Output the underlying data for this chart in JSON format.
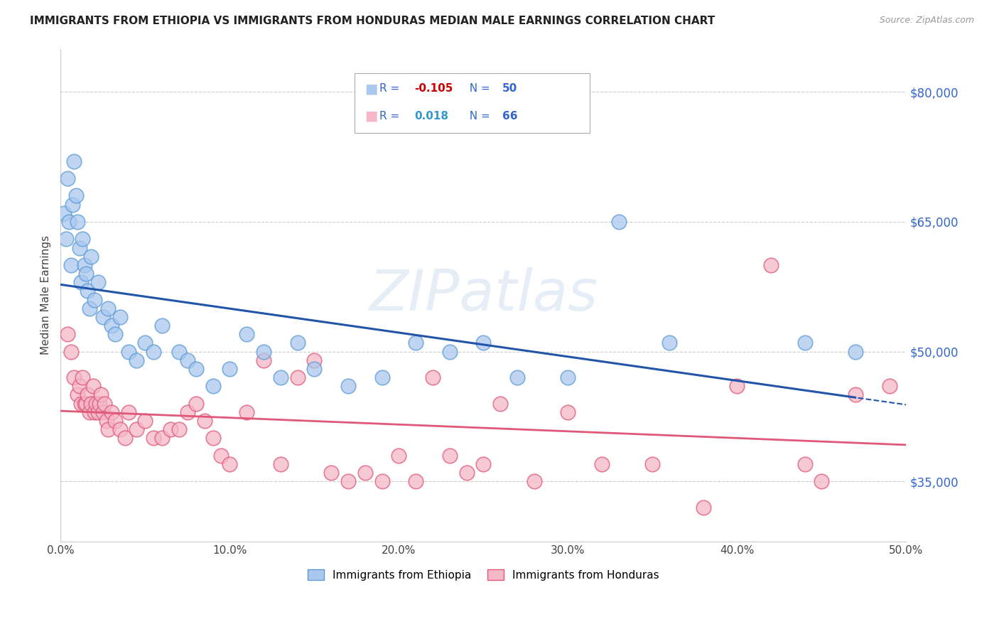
{
  "title": "IMMIGRANTS FROM ETHIOPIA VS IMMIGRANTS FROM HONDURAS MEDIAN MALE EARNINGS CORRELATION CHART",
  "source": "Source: ZipAtlas.com",
  "ylabel": "Median Male Earnings",
  "yticks": [
    35000,
    50000,
    65000,
    80000
  ],
  "ytick_labels": [
    "$35,000",
    "$50,000",
    "$65,000",
    "$80,000"
  ],
  "xtick_vals": [
    0,
    10,
    20,
    30,
    40,
    50
  ],
  "xtick_labels": [
    "0.0%",
    "10.0%",
    "20.0%",
    "30.0%",
    "40.0%",
    "50.0%"
  ],
  "xlim": [
    0.0,
    50.0
  ],
  "ylim": [
    28000,
    85000
  ],
  "ethiopia_color": "#aac8ee",
  "ethiopia_edge": "#5b9bd5",
  "honduras_color": "#f5b8c8",
  "honduras_edge": "#e05878",
  "ethiopia_R": -0.105,
  "ethiopia_N": 50,
  "honduras_R": 0.018,
  "honduras_N": 66,
  "blue_line_color": "#2255aa",
  "pink_line_color": "#e05878",
  "watermark": "ZIPatlas",
  "ethiopia_x": [
    0.2,
    0.3,
    0.4,
    0.5,
    0.6,
    0.7,
    0.8,
    0.9,
    1.0,
    1.1,
    1.2,
    1.3,
    1.4,
    1.5,
    1.6,
    1.7,
    1.8,
    2.0,
    2.2,
    2.5,
    2.8,
    3.0,
    3.2,
    3.5,
    4.0,
    4.5,
    5.0,
    5.5,
    6.0,
    7.0,
    7.5,
    8.0,
    9.0,
    10.0,
    11.0,
    12.0,
    13.0,
    14.0,
    15.0,
    17.0,
    19.0,
    21.0,
    23.0,
    25.0,
    27.0,
    30.0,
    33.0,
    36.0,
    44.0,
    47.0
  ],
  "ethiopia_y": [
    66000,
    63000,
    70000,
    65000,
    60000,
    67000,
    72000,
    68000,
    65000,
    62000,
    58000,
    63000,
    60000,
    59000,
    57000,
    55000,
    61000,
    56000,
    58000,
    54000,
    55000,
    53000,
    52000,
    54000,
    50000,
    49000,
    51000,
    50000,
    53000,
    50000,
    49000,
    48000,
    46000,
    48000,
    52000,
    50000,
    47000,
    51000,
    48000,
    46000,
    47000,
    51000,
    50000,
    51000,
    47000,
    47000,
    65000,
    51000,
    51000,
    50000
  ],
  "honduras_x": [
    0.4,
    0.6,
    0.8,
    1.0,
    1.1,
    1.2,
    1.3,
    1.4,
    1.5,
    1.6,
    1.7,
    1.8,
    1.9,
    2.0,
    2.1,
    2.2,
    2.3,
    2.4,
    2.5,
    2.6,
    2.7,
    2.8,
    3.0,
    3.2,
    3.5,
    3.8,
    4.0,
    4.5,
    5.0,
    5.5,
    6.0,
    6.5,
    7.0,
    7.5,
    8.0,
    8.5,
    9.0,
    9.5,
    10.0,
    11.0,
    12.0,
    13.0,
    14.0,
    15.0,
    16.0,
    17.0,
    18.0,
    19.0,
    20.0,
    21.0,
    22.0,
    23.0,
    24.0,
    25.0,
    26.0,
    28.0,
    30.0,
    32.0,
    35.0,
    38.0,
    40.0,
    42.0,
    44.0,
    45.0,
    47.0,
    49.0
  ],
  "honduras_y": [
    52000,
    50000,
    47000,
    45000,
    46000,
    44000,
    47000,
    44000,
    44000,
    45000,
    43000,
    44000,
    46000,
    43000,
    44000,
    43000,
    44000,
    45000,
    43000,
    44000,
    42000,
    41000,
    43000,
    42000,
    41000,
    40000,
    43000,
    41000,
    42000,
    40000,
    40000,
    41000,
    41000,
    43000,
    44000,
    42000,
    40000,
    38000,
    37000,
    43000,
    49000,
    37000,
    47000,
    49000,
    36000,
    35000,
    36000,
    35000,
    38000,
    35000,
    47000,
    38000,
    36000,
    37000,
    44000,
    35000,
    43000,
    37000,
    37000,
    32000,
    46000,
    60000,
    37000,
    35000,
    45000,
    46000
  ]
}
